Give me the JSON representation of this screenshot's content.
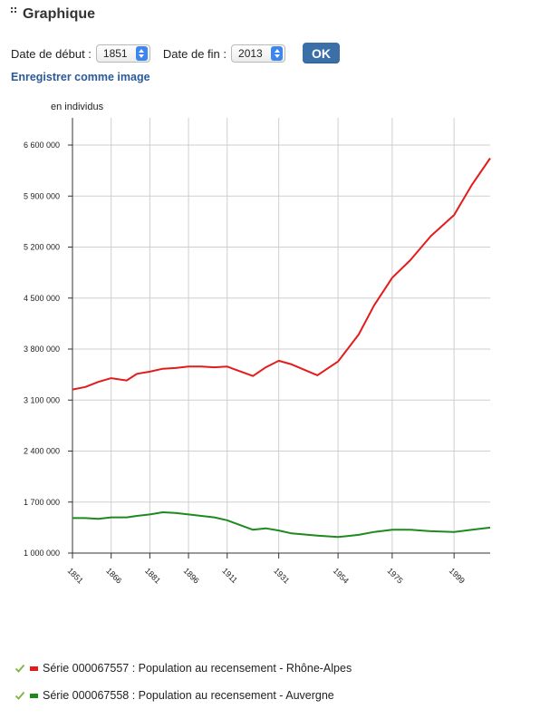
{
  "section": {
    "title": "Graphique"
  },
  "controls": {
    "start_label": "Date de début :",
    "start_value": "1851",
    "end_label": "Date de fin :",
    "end_value": "2013",
    "ok_label": "OK"
  },
  "save_link": "Enregistrer comme image",
  "chart_data": {
    "type": "line",
    "ylabel": "en individus",
    "ylim": [
      1000000,
      6600000
    ],
    "yticks": [
      1000000,
      1700000,
      2400000,
      3100000,
      3800000,
      4500000,
      5200000,
      5900000,
      6600000
    ],
    "ytick_labels": [
      "1 000 000",
      "1 700 000",
      "2 400 000",
      "3 100 000",
      "3 800 000",
      "4 500 000",
      "5 200 000",
      "5 900 000",
      "6 600 000"
    ],
    "xlim": [
      1851,
      2013
    ],
    "xticks": [
      1851,
      1866,
      1881,
      1896,
      1911,
      1931,
      1954,
      1975,
      1999
    ],
    "grid": true,
    "series": [
      {
        "name": "Série 000067557 : Population au recensement - Rhône-Alpes",
        "color": "#e41b1b",
        "points": [
          [
            1851,
            3245000
          ],
          [
            1856,
            3280000
          ],
          [
            1861,
            3350000
          ],
          [
            1866,
            3400000
          ],
          [
            1872,
            3370000
          ],
          [
            1876,
            3460000
          ],
          [
            1881,
            3490000
          ],
          [
            1886,
            3530000
          ],
          [
            1891,
            3540000
          ],
          [
            1896,
            3560000
          ],
          [
            1901,
            3560000
          ],
          [
            1906,
            3550000
          ],
          [
            1911,
            3560000
          ],
          [
            1921,
            3430000
          ],
          [
            1926,
            3550000
          ],
          [
            1931,
            3640000
          ],
          [
            1936,
            3590000
          ],
          [
            1946,
            3440000
          ],
          [
            1954,
            3630000
          ],
          [
            1962,
            4000000
          ],
          [
            1968,
            4400000
          ],
          [
            1975,
            4780000
          ],
          [
            1982,
            5020000
          ],
          [
            1990,
            5350000
          ],
          [
            1999,
            5640000
          ],
          [
            2006,
            6060000
          ],
          [
            2013,
            6420000
          ]
        ]
      },
      {
        "name": "Série 000067558 : Population au recensement - Auvergne",
        "color": "#1e8a1e",
        "points": [
          [
            1851,
            1480000
          ],
          [
            1856,
            1480000
          ],
          [
            1861,
            1470000
          ],
          [
            1866,
            1490000
          ],
          [
            1872,
            1490000
          ],
          [
            1876,
            1510000
          ],
          [
            1881,
            1530000
          ],
          [
            1886,
            1560000
          ],
          [
            1891,
            1550000
          ],
          [
            1896,
            1530000
          ],
          [
            1901,
            1510000
          ],
          [
            1906,
            1490000
          ],
          [
            1911,
            1450000
          ],
          [
            1921,
            1320000
          ],
          [
            1926,
            1340000
          ],
          [
            1931,
            1310000
          ],
          [
            1936,
            1270000
          ],
          [
            1946,
            1240000
          ],
          [
            1954,
            1220000
          ],
          [
            1962,
            1250000
          ],
          [
            1968,
            1290000
          ],
          [
            1975,
            1320000
          ],
          [
            1982,
            1320000
          ],
          [
            1990,
            1300000
          ],
          [
            1999,
            1290000
          ],
          [
            2006,
            1320000
          ],
          [
            2013,
            1350000
          ]
        ]
      }
    ]
  },
  "legend": {
    "items": [
      {
        "label": "Série 000067557 : Population au recensement - Rhône-Alpes",
        "color": "#e41b1b"
      },
      {
        "label": "Série 000067558 : Population au recensement - Auvergne",
        "color": "#1e8a1e"
      }
    ]
  }
}
